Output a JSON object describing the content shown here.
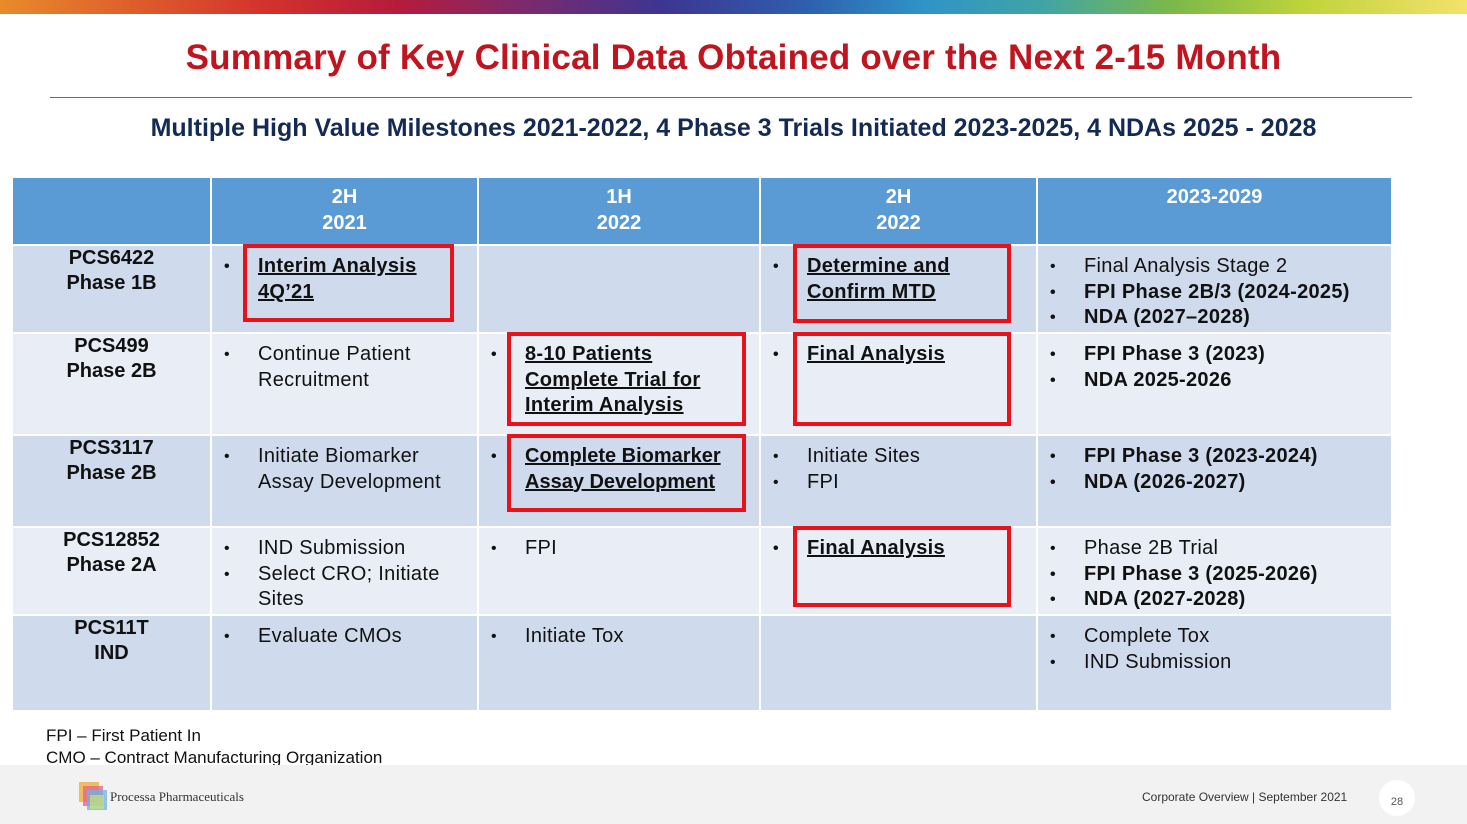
{
  "title": "Summary of Key Clinical Data Obtained over the Next 2-15 Month",
  "subtitle": "Multiple High Value Milestones 2021-2022, 4 Phase 3 Trials Initiated 2023-2025, 4 NDAs 2025 - 2028",
  "table": {
    "headers": [
      {
        "line1": "",
        "line2": ""
      },
      {
        "line1": "2H",
        "line2": "2021"
      },
      {
        "line1": "1H",
        "line2": "2022"
      },
      {
        "line1": "2H",
        "line2": "2022"
      },
      {
        "line1": "2023-2029",
        "line2": ""
      }
    ],
    "rows": [
      {
        "program": "PCS6422",
        "phase": "Phase 1B",
        "c1": [
          "Interim Analysis 4Q’21"
        ],
        "c2": [],
        "c3": [
          "Determine and Confirm MTD"
        ],
        "c4": [
          "Final Analysis Stage 2",
          "FPI Phase 2B/3 (2024-2025)",
          "NDA (2027–2028)"
        ]
      },
      {
        "program": "PCS499",
        "phase": "Phase 2B",
        "c1": [
          "Continue Patient Recruitment"
        ],
        "c2": [
          "8-10 Patients Complete Trial  for Interim Analysis"
        ],
        "c3": [
          "Final Analysis"
        ],
        "c4": [
          "FPI Phase 3 (2023)",
          "NDA 2025-2026"
        ]
      },
      {
        "program": "PCS3117",
        "phase": "Phase 2B",
        "c1": [
          "Initiate Biomarker Assay Development"
        ],
        "c2": [
          "Complete Biomarker Assay Development"
        ],
        "c3": [
          "Initiate Sites",
          "FPI"
        ],
        "c4": [
          "FPI Phase 3 (2023-2024)",
          "NDA (2026-2027)"
        ]
      },
      {
        "program": "PCS12852",
        "phase": "Phase 2A",
        "c1": [
          "IND Submission",
          "Select CRO; Initiate Sites"
        ],
        "c2": [
          "FPI"
        ],
        "c3": [
          "Final Analysis"
        ],
        "c4": [
          "Phase 2B Trial",
          "FPI Phase 3 (2025-2026)",
          "NDA (2027-2028)"
        ]
      },
      {
        "program": "PCS11T",
        "phase": "IND",
        "c1": [
          "Evaluate CMOs"
        ],
        "c2": [
          "Initiate Tox"
        ],
        "c3": [],
        "c4": [
          "Complete Tox",
          "IND Submission"
        ]
      }
    ]
  },
  "footnotes": [
    "FPI – First Patient In",
    "CMO – Contract Manufacturing Organization"
  ],
  "footer": {
    "company": "Processa Pharmaceuticals",
    "deck": "Corporate Overview | September 2021",
    "page": "28"
  },
  "colors": {
    "title": "#c0141e",
    "subtitle": "#132a55",
    "header_bg": "#5b9bd5",
    "row_dark": "#cfdaed",
    "row_light": "#e8edf6",
    "highlight_box": "#e8121b"
  }
}
